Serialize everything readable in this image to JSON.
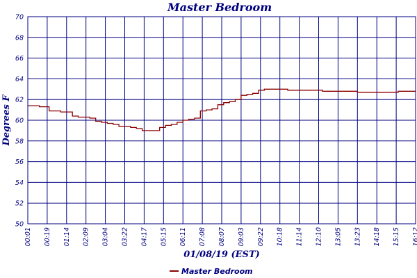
{
  "chart_data": {
    "type": "line",
    "title": "Master Bedroom",
    "xlabel": "01/08/19 (EST)",
    "ylabel": "Degrees F",
    "ylim": [
      50,
      70
    ],
    "yticks": [
      50,
      52,
      54,
      56,
      58,
      60,
      62,
      64,
      66,
      68,
      70
    ],
    "xticks": [
      "00:01",
      "00:19",
      "01:14",
      "02:09",
      "03:04",
      "03:22",
      "04:17",
      "05:15",
      "06:11",
      "07:08",
      "08:07",
      "09:03",
      "09:22",
      "10:18",
      "11:14",
      "12:10",
      "13:05",
      "13:23",
      "14:18",
      "15:15",
      "16:12"
    ],
    "grid": true,
    "legend_position": "bottom",
    "line_color": "#8b0000",
    "grid_color": "#000080",
    "series": [
      {
        "name": "Master Bedroom",
        "x": [
          0,
          0.3,
          0.6,
          0.9,
          1.1,
          1.4,
          1.7,
          2.0,
          2.3,
          2.6,
          2.9,
          3.2,
          3.5,
          3.8,
          4.1,
          4.4,
          4.7,
          5.0,
          5.3,
          5.6,
          5.9,
          6.2,
          6.5,
          6.8,
          7.1,
          7.4,
          7.7,
          8.0,
          8.3,
          8.6,
          8.9,
          9.2,
          9.5,
          9.8,
          10.1,
          10.4,
          10.7,
          11.0,
          11.3,
          11.6,
          11.9,
          12.2,
          12.5,
          12.8,
          13.1,
          13.4,
          13.7,
          14.0,
          14.3,
          14.6,
          14.9,
          15.2,
          15.5,
          15.8,
          16.1,
          16.4,
          16.7,
          17.0,
          17.3,
          17.6,
          17.9,
          18.2,
          18.5,
          18.8,
          19.1,
          19.4,
          19.7,
          20.0
        ],
        "values": [
          61.4,
          61.4,
          61.3,
          61.3,
          60.9,
          60.9,
          60.8,
          60.8,
          60.4,
          60.3,
          60.3,
          60.2,
          59.9,
          59.8,
          59.7,
          59.6,
          59.4,
          59.4,
          59.3,
          59.2,
          59.0,
          59.0,
          59.0,
          59.3,
          59.5,
          59.6,
          59.8,
          60.0,
          60.1,
          60.2,
          60.9,
          61.0,
          61.1,
          61.5,
          61.7,
          61.8,
          62.0,
          62.4,
          62.5,
          62.6,
          62.9,
          63.0,
          63.0,
          63.0,
          63.0,
          62.9,
          62.9,
          62.9,
          62.9,
          62.9,
          62.9,
          62.8,
          62.8,
          62.8,
          62.8,
          62.8,
          62.8,
          62.7,
          62.7,
          62.7,
          62.7,
          62.7,
          62.7,
          62.7,
          62.8,
          62.8,
          62.8,
          62.8
        ]
      }
    ]
  }
}
